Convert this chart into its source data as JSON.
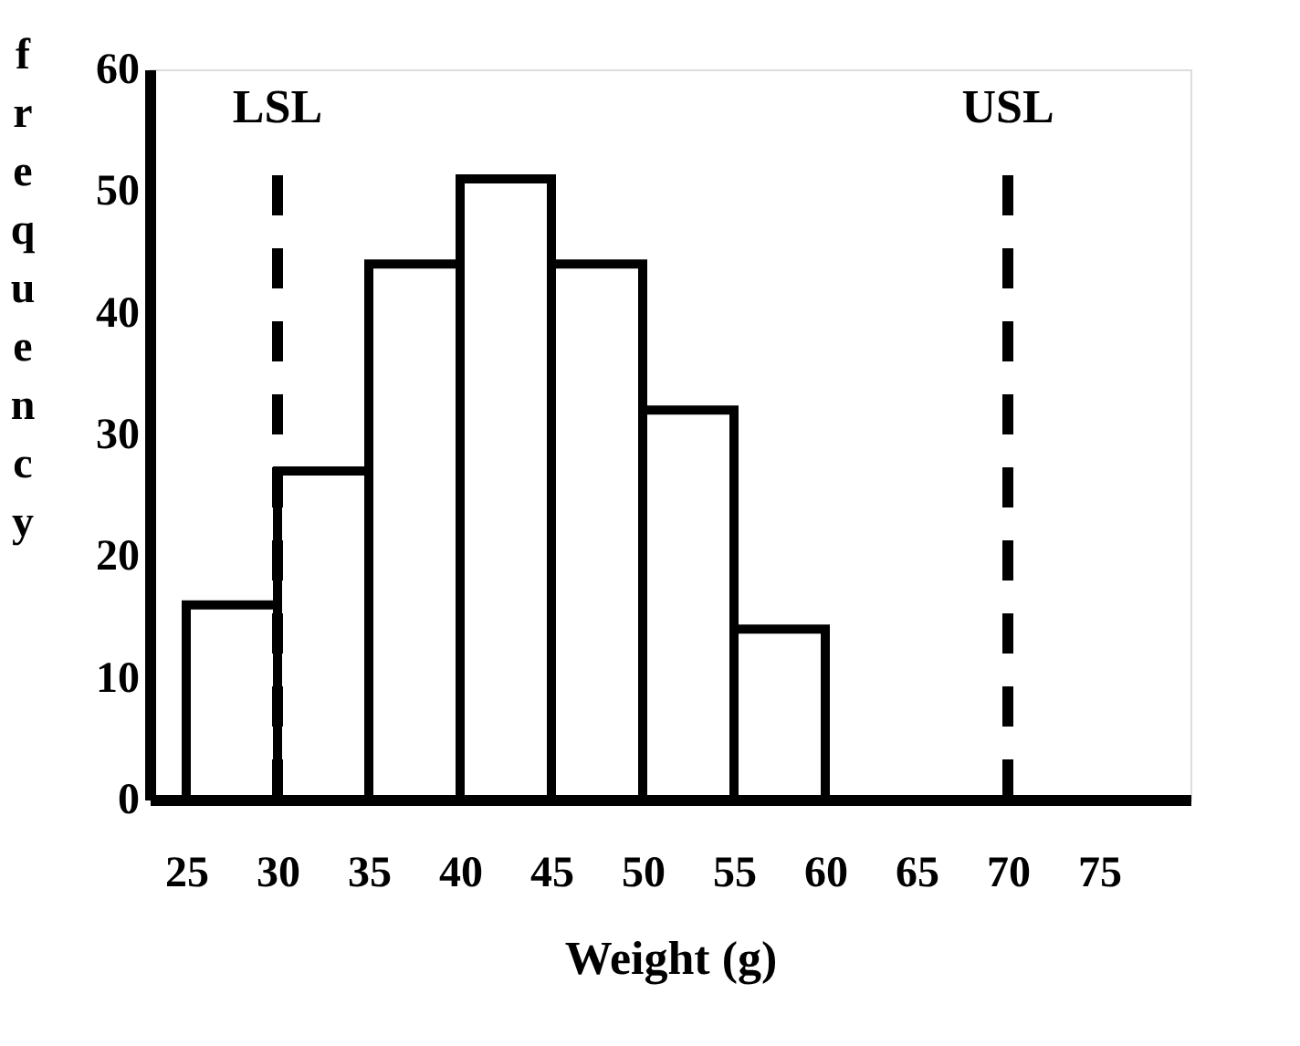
{
  "chart_data": {
    "type": "histogram",
    "xlabel": "Weight (g)",
    "ylabel": "frequency",
    "bins": [
      25,
      30,
      35,
      40,
      45,
      50,
      55,
      60
    ],
    "values": [
      16,
      27,
      44,
      51,
      44,
      32,
      14
    ],
    "color": "#ffffff",
    "xlim": [
      23,
      80
    ],
    "xticks": [
      25,
      30,
      35,
      40,
      45,
      50,
      55,
      60,
      65,
      70,
      75
    ],
    "ylim": [
      0,
      60
    ],
    "yticks": [
      0,
      10,
      20,
      30,
      40,
      50,
      60
    ],
    "ref_lines": [
      {
        "axis": "x",
        "value": 30,
        "label": "LSL",
        "color": "#000000",
        "line_style": "dashed"
      },
      {
        "axis": "x",
        "value": 70,
        "label": "USL",
        "color": "#000000",
        "line_style": "dashed"
      }
    ],
    "grid": false
  }
}
